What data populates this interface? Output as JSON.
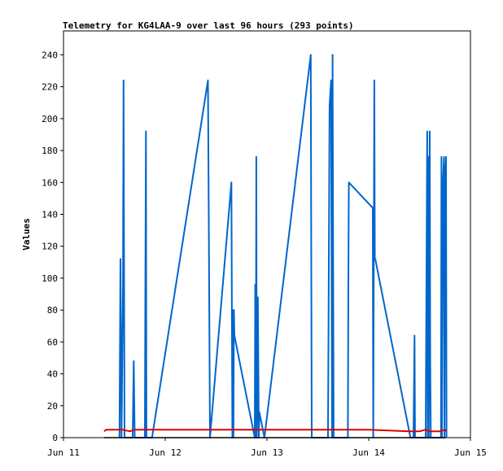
{
  "chart_data": {
    "type": "line",
    "title": "Telemetry for KG4LAA-9 over last 96 hours (293 points)",
    "xlabel": "",
    "ylabel": "Values",
    "x_ticks": [
      {
        "label": "Jun 11",
        "value": 0
      },
      {
        "label": "Jun 12",
        "value": 1
      },
      {
        "label": "Jun 13",
        "value": 2
      },
      {
        "label": "Jun 14",
        "value": 3
      },
      {
        "label": "Jun 15",
        "value": 4
      }
    ],
    "xlim": [
      0,
      4
    ],
    "ylim": [
      0,
      255
    ],
    "y_ticks": [
      0,
      20,
      40,
      60,
      80,
      100,
      120,
      140,
      160,
      180,
      200,
      220,
      240
    ],
    "grid": false,
    "legend": "none",
    "colors": {
      "series1": "#0066cc",
      "series2": "#dd0000",
      "series3": "#000000"
    },
    "series": [
      {
        "color": "#0066cc",
        "points": [
          [
            0.55,
            0
          ],
          [
            0.56,
            112
          ],
          [
            0.57,
            0
          ],
          [
            0.585,
            96
          ],
          [
            0.59,
            224
          ],
          [
            0.595,
            112
          ],
          [
            0.6,
            0
          ],
          [
            0.68,
            0
          ],
          [
            0.69,
            48
          ],
          [
            0.7,
            0
          ],
          [
            0.8,
            0
          ],
          [
            0.805,
            96
          ],
          [
            0.81,
            192
          ],
          [
            0.815,
            0
          ],
          [
            0.87,
            0
          ],
          [
            1.42,
            224
          ],
          [
            1.43,
            112
          ],
          [
            1.44,
            0
          ],
          [
            1.65,
            160
          ],
          [
            1.66,
            0
          ],
          [
            1.665,
            80
          ],
          [
            1.67,
            0
          ],
          [
            1.675,
            80
          ],
          [
            1.68,
            64
          ],
          [
            1.88,
            0
          ],
          [
            1.885,
            96
          ],
          [
            1.89,
            0
          ],
          [
            1.895,
            176
          ],
          [
            1.9,
            0
          ],
          [
            1.905,
            16
          ],
          [
            1.91,
            88
          ],
          [
            1.92,
            0
          ],
          [
            1.925,
            16
          ],
          [
            1.975,
            0
          ],
          [
            2.43,
            240
          ],
          [
            2.44,
            0
          ],
          [
            2.6,
            0
          ],
          [
            2.615,
            208
          ],
          [
            2.63,
            224
          ],
          [
            2.64,
            0
          ],
          [
            2.645,
            240
          ],
          [
            2.655,
            0
          ],
          [
            2.795,
            0
          ],
          [
            2.8,
            96
          ],
          [
            2.805,
            160
          ],
          [
            3.04,
            144
          ],
          [
            3.045,
            0
          ],
          [
            3.055,
            224
          ],
          [
            3.06,
            112
          ],
          [
            3.065,
            112
          ],
          [
            3.41,
            0
          ],
          [
            3.44,
            0
          ],
          [
            3.45,
            64
          ],
          [
            3.455,
            0
          ],
          [
            3.56,
            0
          ],
          [
            3.57,
            136
          ],
          [
            3.575,
            192
          ],
          [
            3.58,
            0
          ],
          [
            3.585,
            176
          ],
          [
            3.59,
            0
          ],
          [
            3.6,
            192
          ],
          [
            3.605,
            48
          ],
          [
            3.61,
            0
          ],
          [
            3.71,
            0
          ],
          [
            3.715,
            176
          ],
          [
            3.72,
            0
          ],
          [
            3.73,
            160
          ],
          [
            3.74,
            176
          ],
          [
            3.745,
            0
          ],
          [
            3.75,
            160
          ],
          [
            3.76,
            176
          ],
          [
            3.765,
            0
          ]
        ]
      },
      {
        "color": "#dd0000",
        "points": [
          [
            0.4,
            4
          ],
          [
            0.42,
            5
          ],
          [
            0.5,
            5
          ],
          [
            0.58,
            5
          ],
          [
            0.65,
            4
          ],
          [
            0.7,
            5
          ],
          [
            1.0,
            5
          ],
          [
            2.0,
            5
          ],
          [
            3.0,
            5
          ],
          [
            3.4,
            4
          ],
          [
            3.5,
            4
          ],
          [
            3.56,
            5
          ],
          [
            3.6,
            4
          ],
          [
            3.7,
            4
          ],
          [
            3.75,
            5
          ],
          [
            3.76,
            4
          ]
        ]
      },
      {
        "color": "#000000",
        "points": [
          [
            0.4,
            0
          ],
          [
            3.76,
            0
          ]
        ]
      }
    ]
  }
}
